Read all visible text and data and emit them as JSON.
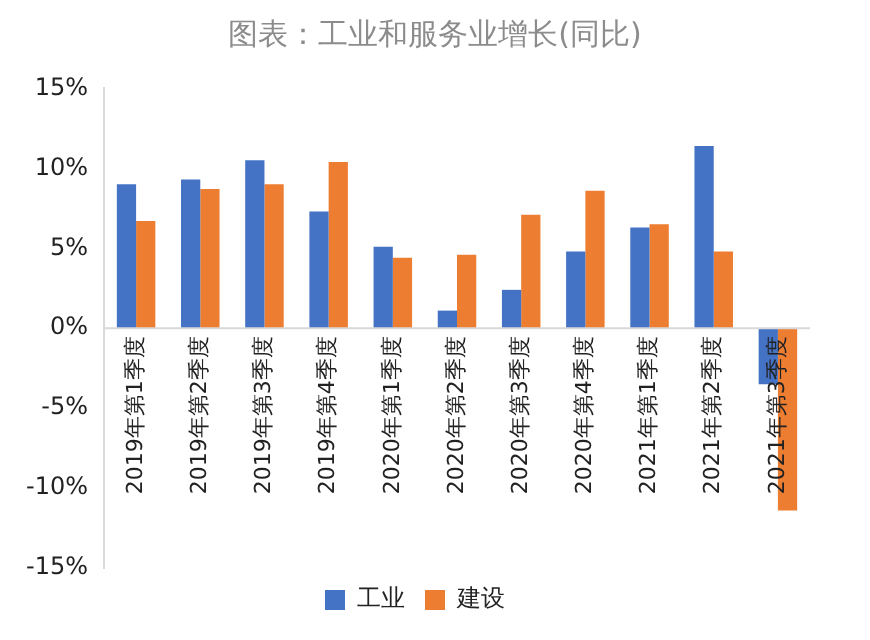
{
  "chart_data": {
    "type": "bar",
    "title": "图表：工业和服务业增长(同比)",
    "categories": [
      "2019年第1季度",
      "2019年第2季度",
      "2019年第3季度",
      "2019年第4季度",
      "2020年第1季度",
      "2020年第2季度",
      "2020年第3季度",
      "2020年第4季度",
      "2021年第1季度",
      "2021年第2季度",
      "2021年第3季度"
    ],
    "series": [
      {
        "name": "工业",
        "color": "#4472c4",
        "values": [
          9.0,
          9.3,
          10.5,
          7.3,
          5.1,
          1.1,
          2.4,
          4.8,
          6.3,
          11.4,
          -3.5
        ]
      },
      {
        "name": "建设",
        "color": "#ed7d31",
        "values": [
          6.7,
          8.7,
          9.0,
          10.4,
          4.4,
          4.6,
          7.1,
          8.6,
          6.5,
          4.8,
          -11.4
        ]
      }
    ],
    "ylim": [
      -15,
      15
    ],
    "yticks": [
      {
        "value": -15,
        "label": "-15%"
      },
      {
        "value": -10,
        "label": "-10%"
      },
      {
        "value": -5,
        "label": "-5%"
      },
      {
        "value": 0,
        "label": "0%"
      },
      {
        "value": 5,
        "label": "5%"
      },
      {
        "value": 10,
        "label": "10%"
      },
      {
        "value": 15,
        "label": "15%"
      }
    ],
    "grid": false,
    "legend": "bottom"
  }
}
